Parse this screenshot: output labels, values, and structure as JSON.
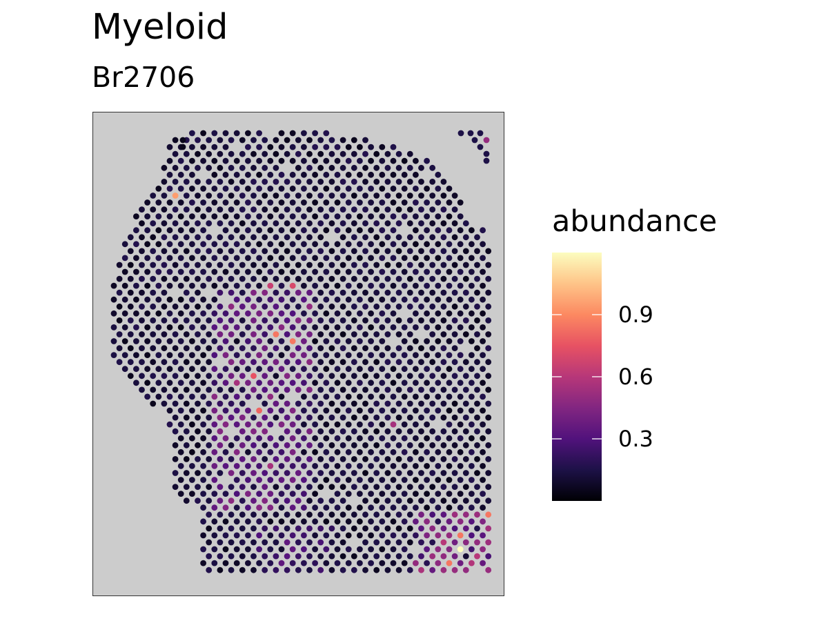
{
  "chart_data": {
    "type": "scatter",
    "title": "Myeloid",
    "subtitle": "Br2706",
    "legend": {
      "title": "abundance",
      "colormap": "magma",
      "range": [
        0,
        1.2
      ],
      "ticks": [
        {
          "value": 0.3,
          "label": "0.3"
        },
        {
          "value": 0.6,
          "label": "0.6"
        },
        {
          "value": 0.9,
          "label": "0.9"
        }
      ],
      "colors": [
        "#000004",
        "#1d1147",
        "#51127c",
        "#822681",
        "#b73779",
        "#e75263",
        "#fc8961",
        "#fec488",
        "#fcfdbf"
      ]
    },
    "panel_background": "#cccccc",
    "tissue": {
      "rows": 64,
      "columns": 36,
      "baseline_abundance": 0.05,
      "hotspots": [
        {
          "row": 9,
          "col": 5,
          "value": 0.95
        },
        {
          "row": 22,
          "col": 14,
          "value": 0.65
        },
        {
          "row": 22,
          "col": 16,
          "value": 0.7
        },
        {
          "row": 29,
          "col": 14,
          "value": 0.85
        },
        {
          "row": 30,
          "col": 16,
          "value": 0.85
        },
        {
          "row": 35,
          "col": 12,
          "value": 0.75
        },
        {
          "row": 36,
          "col": 11,
          "value": 0.55
        },
        {
          "row": 40,
          "col": 13,
          "value": 0.8
        },
        {
          "row": 48,
          "col": 14,
          "value": 0.55
        },
        {
          "row": 42,
          "col": 25,
          "value": 0.55
        },
        {
          "row": 55,
          "col": 33,
          "value": 0.85
        },
        {
          "row": 58,
          "col": 31,
          "value": 0.85
        },
        {
          "row": 60,
          "col": 31,
          "value": 1.2
        },
        {
          "row": 59,
          "col": 29,
          "value": 0.6
        },
        {
          "row": 62,
          "col": 30,
          "value": 0.85
        },
        {
          "row": 61,
          "col": 32,
          "value": 0.6
        },
        {
          "row": 3,
          "col": 33,
          "value": 0.55
        }
      ]
    }
  }
}
